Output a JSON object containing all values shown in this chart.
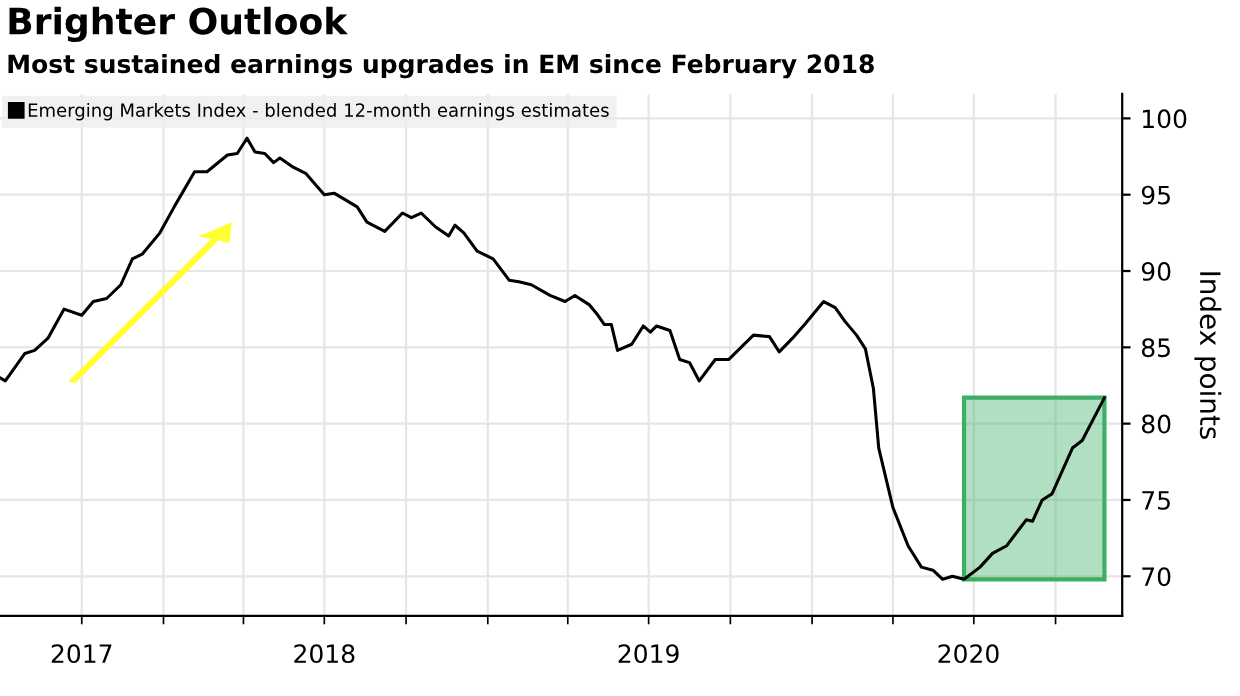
{
  "chart_data": {
    "type": "line",
    "title": "Brighter Outlook",
    "subtitle": "Most sustained earnings upgrades in EM since February 2018",
    "ylabel": "Index points",
    "x": [
      "2017-07-01",
      "2017-07-07",
      "2017-07-29",
      "2017-08-09",
      "2017-08-24",
      "2017-09-11",
      "2017-10-01",
      "2017-10-14",
      "2017-10-29",
      "2017-11-14",
      "2017-11-27",
      "2017-12-08",
      "2017-12-28",
      "2018-01-14",
      "2018-02-05",
      "2018-02-19",
      "2018-03-14",
      "2018-03-25",
      "2018-04-05",
      "2018-04-14",
      "2018-04-25",
      "2018-05-05",
      "2018-05-12",
      "2018-05-27",
      "2018-06-10",
      "2018-07-01",
      "2018-07-12",
      "2018-08-07",
      "2018-08-18",
      "2018-09-07",
      "2018-09-27",
      "2018-10-07",
      "2018-10-18",
      "2018-11-03",
      "2018-11-18",
      "2018-11-25",
      "2018-12-05",
      "2018-12-20",
      "2019-01-07",
      "2019-01-25",
      "2019-02-05",
      "2019-02-19",
      "2019-03-12",
      "2019-03-29",
      "2019-04-09",
      "2019-04-25",
      "2019-05-05",
      "2019-05-12",
      "2019-05-20",
      "2019-05-27",
      "2019-06-12",
      "2019-06-25",
      "2019-07-03",
      "2019-07-10",
      "2019-07-25",
      "2019-08-05",
      "2019-08-16",
      "2019-08-27",
      "2019-09-14",
      "2019-09-29",
      "2019-10-27",
      "2019-11-14",
      "2019-11-25",
      "2019-12-10",
      "2019-12-25",
      "2020-01-14",
      "2020-01-27",
      "2020-02-07",
      "2020-02-20",
      "2020-03-01",
      "2020-03-10",
      "2020-03-16",
      "2020-04-01",
      "2020-04-18",
      "2020-05-03",
      "2020-05-16",
      "2020-05-27",
      "2020-06-07",
      "2020-06-20",
      "2020-07-08",
      "2020-07-22",
      "2020-08-07",
      "2020-08-29",
      "2020-09-05",
      "2020-09-16",
      "2020-09-27",
      "2020-10-20",
      "2020-10-31",
      "2020-11-25"
    ],
    "series": [
      {
        "name": "Emerging Markets Index - blended 12-month earnings estimates",
        "color": "#000000",
        "values": [
          83.0,
          82.8,
          84.6,
          84.8,
          85.6,
          87.5,
          87.1,
          88.0,
          88.2,
          89.1,
          90.8,
          91.1,
          92.5,
          94.3,
          96.5,
          96.5,
          97.6,
          97.7,
          98.7,
          97.8,
          97.7,
          97.1,
          97.4,
          96.8,
          96.4,
          95.0,
          95.1,
          94.2,
          93.2,
          92.6,
          93.8,
          93.5,
          93.8,
          92.9,
          92.3,
          93.0,
          92.5,
          91.3,
          90.8,
          89.4,
          89.3,
          89.1,
          88.4,
          88.0,
          88.4,
          87.8,
          87.1,
          86.5,
          86.5,
          84.8,
          85.2,
          86.4,
          86.0,
          86.4,
          86.1,
          84.2,
          84.0,
          82.8,
          84.2,
          84.2,
          85.8,
          85.7,
          84.7,
          85.6,
          86.6,
          88.0,
          87.6,
          86.7,
          85.8,
          84.9,
          82.3,
          78.4,
          74.5,
          72.0,
          70.6,
          70.4,
          69.8,
          70.0,
          69.8,
          70.6,
          71.5,
          72.0,
          73.7,
          73.6,
          75.0,
          75.4,
          78.4,
          78.9,
          81.7
        ]
      }
    ],
    "xlim": [
      "2017-07-01",
      "2020-12-15"
    ],
    "xticks": [
      {
        "value": "2017-10-01",
        "label": null
      },
      {
        "value": "2017-10-01",
        "label": "2017"
      },
      {
        "value": "2018-01-01",
        "label": null
      },
      {
        "value": "2018-04-01",
        "label": null
      },
      {
        "value": "2018-07-01",
        "label": null
      },
      {
        "value": "2018-07-01",
        "label": "2018"
      },
      {
        "value": "2018-10-01",
        "label": null
      },
      {
        "value": "2019-01-01",
        "label": null
      },
      {
        "value": "2019-04-01",
        "label": null
      },
      {
        "value": "2019-07-01",
        "label": null
      },
      {
        "value": "2019-07-01",
        "label": "2019"
      },
      {
        "value": "2019-10-01",
        "label": null
      },
      {
        "value": "2020-01-01",
        "label": null
      },
      {
        "value": "2020-04-01",
        "label": null
      },
      {
        "value": "2020-06-25",
        "label": "2020"
      },
      {
        "value": "2020-07-01",
        "label": null
      },
      {
        "value": "2020-10-01",
        "label": null
      }
    ],
    "ylim": [
      67.4,
      101.6
    ],
    "yticks": [
      70,
      75,
      80,
      85,
      90,
      95,
      100
    ],
    "bands": [
      {
        "axis": "x",
        "from": "2020-06-20",
        "to": "2020-11-25",
        "color": "#3dae63"
      }
    ],
    "grid": true,
    "legend": "top left",
    "marker": "none",
    "line_style": "solid"
  }
}
